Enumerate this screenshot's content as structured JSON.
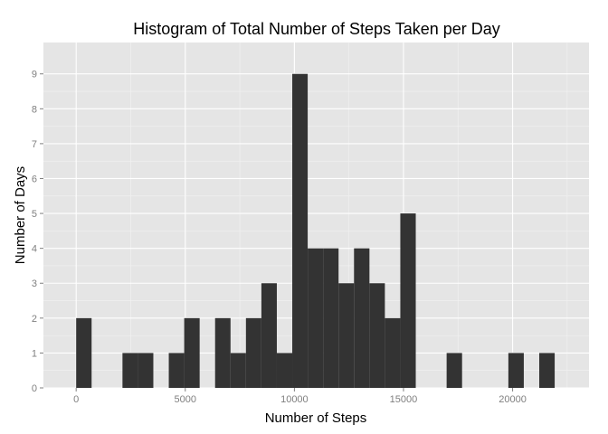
{
  "chart_data": {
    "type": "bar",
    "title": "Histogram of Total Number of Steps Taken per Day",
    "xlabel": "Number of Steps",
    "ylabel": "Number of Days",
    "xlim": [
      -1500,
      23500
    ],
    "ylim": [
      0,
      9.9
    ],
    "x_ticks": [
      0,
      5000,
      10000,
      15000,
      20000
    ],
    "x_tick_labels": [
      "0",
      "5000",
      "10000",
      "15000",
      "20000"
    ],
    "y_ticks": [
      0,
      1,
      2,
      3,
      4,
      5,
      6,
      7,
      8,
      9
    ],
    "y_tick_labels": [
      "0",
      "1",
      "2",
      "3",
      "4",
      "5",
      "6",
      "7",
      "8",
      "9"
    ],
    "bin_width": 707.4,
    "bins": [
      {
        "x_start": 0,
        "count": 2
      },
      {
        "x_start": 2122,
        "count": 1
      },
      {
        "x_start": 2829,
        "count": 1
      },
      {
        "x_start": 4244,
        "count": 1
      },
      {
        "x_start": 4951,
        "count": 2
      },
      {
        "x_start": 6366,
        "count": 2
      },
      {
        "x_start": 7073,
        "count": 1
      },
      {
        "x_start": 7780,
        "count": 2
      },
      {
        "x_start": 8488,
        "count": 3
      },
      {
        "x_start": 9195,
        "count": 1
      },
      {
        "x_start": 9902,
        "count": 9
      },
      {
        "x_start": 10610,
        "count": 4
      },
      {
        "x_start": 11317,
        "count": 4
      },
      {
        "x_start": 12024,
        "count": 3
      },
      {
        "x_start": 12732,
        "count": 4
      },
      {
        "x_start": 13439,
        "count": 3
      },
      {
        "x_start": 14146,
        "count": 2
      },
      {
        "x_start": 14854,
        "count": 5
      },
      {
        "x_start": 16976,
        "count": 1
      },
      {
        "x_start": 19805,
        "count": 1
      },
      {
        "x_start": 21220,
        "count": 1
      }
    ],
    "grid": true,
    "colors": {
      "panel_bg": "#e5e5e5",
      "grid_major": "#ffffff",
      "grid_minor": "#f2f2f2",
      "bar_fill": "#333333",
      "tick_color": "#7f7f7f"
    }
  }
}
